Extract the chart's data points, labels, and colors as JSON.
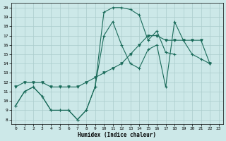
{
  "xlabel": "Humidex (Indice chaleur)",
  "bg_color": "#cce8e8",
  "grid_color": "#aacccc",
  "line_color": "#1a6b5a",
  "xlim": [
    -0.5,
    23.5
  ],
  "ylim": [
    7.5,
    20.5
  ],
  "yticks": [
    8,
    9,
    10,
    11,
    12,
    13,
    14,
    15,
    16,
    17,
    18,
    19,
    20
  ],
  "xticks": [
    0,
    1,
    2,
    3,
    4,
    5,
    6,
    7,
    8,
    9,
    10,
    11,
    12,
    13,
    14,
    15,
    16,
    17,
    18,
    19,
    20,
    21,
    22,
    23
  ],
  "curve_top_x": [
    0,
    1,
    2,
    3,
    4,
    5,
    6,
    7,
    8,
    9,
    10,
    11,
    12,
    13,
    14,
    15,
    16,
    17,
    18
  ],
  "curve_top_y": [
    9.5,
    11,
    11.5,
    10.5,
    9,
    9,
    9,
    8,
    9,
    11.5,
    19.5,
    20,
    20,
    19.8,
    19.2,
    16.5,
    17.5,
    15.2,
    15.0
  ],
  "curve_mid_x": [
    0,
    1,
    2,
    3,
    4,
    5,
    6,
    7,
    8,
    9,
    10,
    11,
    12,
    13,
    14,
    15,
    16,
    17,
    18,
    19,
    20,
    21,
    22
  ],
  "curve_mid_y": [
    9.5,
    11,
    11.5,
    10.5,
    9,
    9,
    9,
    8,
    9,
    11.5,
    17.0,
    18.5,
    16.0,
    14.0,
    13.5,
    15.5,
    16.0,
    11.5,
    18.5,
    16.5,
    15.0,
    14.5,
    14.0
  ],
  "curve_bot_x": [
    0,
    1,
    2,
    3,
    4,
    5,
    6,
    7,
    8,
    9,
    10,
    11,
    12,
    13,
    14,
    15,
    16,
    17,
    18,
    19,
    20,
    21,
    22
  ],
  "curve_bot_y": [
    11.5,
    12,
    12,
    12,
    11.5,
    11.5,
    11.5,
    11.5,
    12,
    12.5,
    13.0,
    13.5,
    14.0,
    15.0,
    16.0,
    17.0,
    17.0,
    16.5,
    16.5,
    16.5,
    16.5,
    16.5,
    14.0
  ]
}
